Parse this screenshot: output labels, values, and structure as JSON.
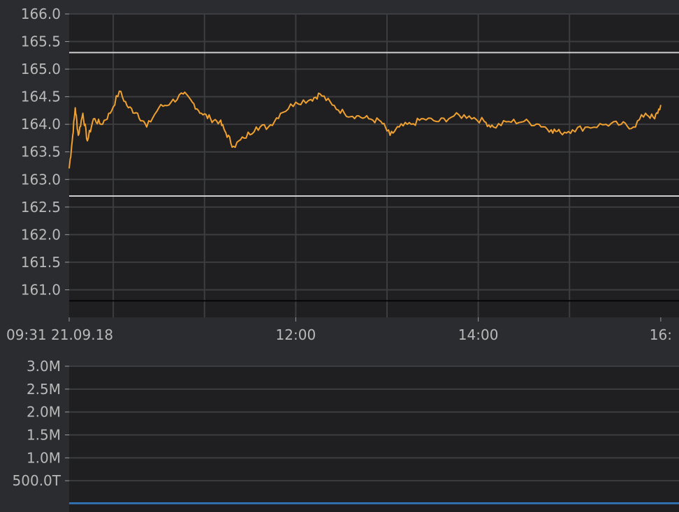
{
  "chart_data": [
    {
      "type": "line",
      "title": "",
      "xlabel": "",
      "ylabel": "",
      "x_tick_labels": [
        "09:31 21.09.18",
        "12:00",
        "14:00",
        "16:"
      ],
      "y_tick_labels": [
        "166.0",
        "165.5",
        "165.0",
        "164.5",
        "164.0",
        "163.5",
        "163.0",
        "162.5",
        "162.0",
        "161.5",
        "161.0"
      ],
      "ylim": [
        160.5,
        166.0
      ],
      "xlim": [
        "09:31",
        "16:00"
      ],
      "grid": true,
      "colors": {
        "line": "#f0a030",
        "background": "#1f1f21",
        "grid": "#3c3d41",
        "reference_line": "#cfcfcf"
      },
      "reference_lines": [
        165.3,
        162.7,
        160.8
      ],
      "series": [
        {
          "points": [
            [
              "09:31",
              163.2
            ],
            [
              "09:33",
              163.7
            ],
            [
              "09:35",
              164.3
            ],
            [
              "09:37",
              163.8
            ],
            [
              "09:40",
              164.2
            ],
            [
              "09:43",
              163.7
            ],
            [
              "09:47",
              164.1
            ],
            [
              "09:52",
              164.0
            ],
            [
              "09:58",
              164.2
            ],
            [
              "10:04",
              164.6
            ],
            [
              "10:10",
              164.3
            ],
            [
              "10:16",
              164.2
            ],
            [
              "10:22",
              163.95
            ],
            [
              "10:30",
              164.3
            ],
            [
              "10:38",
              164.4
            ],
            [
              "10:46",
              164.55
            ],
            [
              "10:52",
              164.4
            ],
            [
              "10:58",
              164.2
            ],
            [
              "11:04",
              164.1
            ],
            [
              "11:10",
              164.05
            ],
            [
              "11:14",
              163.85
            ],
            [
              "11:19",
              163.6
            ],
            [
              "11:26",
              163.75
            ],
            [
              "11:34",
              163.95
            ],
            [
              "11:42",
              163.95
            ],
            [
              "11:50",
              164.2
            ],
            [
              "12:00",
              164.4
            ],
            [
              "12:10",
              164.45
            ],
            [
              "12:16",
              164.55
            ],
            [
              "12:24",
              164.35
            ],
            [
              "12:32",
              164.2
            ],
            [
              "12:40",
              164.15
            ],
            [
              "12:48",
              164.1
            ],
            [
              "12:56",
              164.05
            ],
            [
              "13:02",
              163.8
            ],
            [
              "13:08",
              163.95
            ],
            [
              "13:16",
              164.0
            ],
            [
              "13:24",
              164.1
            ],
            [
              "13:34",
              164.05
            ],
            [
              "13:44",
              164.15
            ],
            [
              "13:54",
              164.15
            ],
            [
              "14:04",
              164.05
            ],
            [
              "14:10",
              163.95
            ],
            [
              "14:20",
              164.05
            ],
            [
              "14:30",
              164.05
            ],
            [
              "14:40",
              164.0
            ],
            [
              "14:48",
              163.9
            ],
            [
              "14:54",
              163.85
            ],
            [
              "15:02",
              163.9
            ],
            [
              "15:12",
              163.95
            ],
            [
              "15:24",
              164.0
            ],
            [
              "15:34",
              164.0
            ],
            [
              "15:42",
              163.95
            ],
            [
              "15:50",
              164.2
            ],
            [
              "15:56",
              164.1
            ],
            [
              "16:00",
              164.35
            ]
          ]
        }
      ]
    },
    {
      "type": "bar",
      "title": "",
      "xlabel": "",
      "ylabel": "",
      "y_tick_labels": [
        "3.0M",
        "2.5M",
        "2.0M",
        "1.5M",
        "1.0M",
        "500.0T"
      ],
      "ylim": [
        0,
        3000000
      ],
      "grid": true,
      "colors": {
        "bars": "#2f6fb0",
        "background": "#1f1f21",
        "grid": "#3c3d41"
      },
      "values_note": "volume near zero across session",
      "values": [
        0
      ]
    }
  ]
}
